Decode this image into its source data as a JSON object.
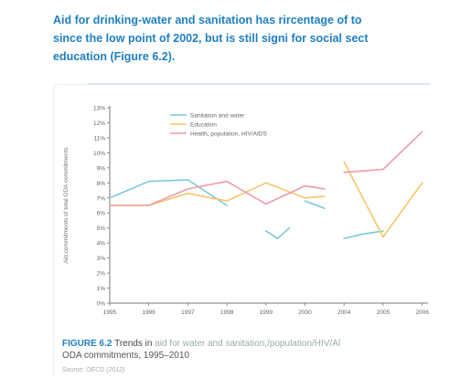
{
  "heading": {
    "line1": "Aid for drinking-water and sanitation has rircentage of to",
    "line2": "since the low point of 2002, but is still signi for social sect",
    "line3": "education (Figure 6.2)."
  },
  "figure": {
    "number": "FIGURE 6.2",
    "caption_dark": "Trends in",
    "caption_light": "aid for water and sanitation,/population/HIV/Al",
    "caption_line2": "ODA commitments, 1995–2010",
    "source": "Source: OECD (2012)"
  },
  "colors": {
    "sanitation": "#7ac9d4",
    "education": "#f6c56a",
    "health": "#ef9aa8",
    "axis": "#7a7a7a",
    "heading": "#1f7fc0"
  },
  "chart_data": {
    "type": "line",
    "ylabel": "Aid commitments of total ODA commitments",
    "categories": [
      "1995",
      "1996",
      "1997",
      "1998",
      "1999",
      "2000",
      "2004",
      "2005",
      "2006"
    ],
    "y_ticks": [
      "0%",
      "1%",
      "2%",
      "3%",
      "4%",
      "5%",
      "6%",
      "7%",
      "8%",
      "9%",
      "10%",
      "11%",
      "12%",
      "13%"
    ],
    "ylim": [
      0,
      13
    ],
    "grid": false,
    "legend_position": "top-left",
    "series": [
      {
        "name": "Sanitation and water",
        "color_key": "sanitation",
        "segments": [
          [
            [
              0,
              7.0
            ],
            [
              1,
              8.1
            ],
            [
              2,
              8.2
            ],
            [
              3,
              6.5
            ]
          ],
          [
            [
              4,
              4.8
            ],
            [
              4.3,
              4.3
            ],
            [
              4.6,
              5.0
            ]
          ],
          [
            [
              5,
              6.8
            ],
            [
              5.5,
              6.3
            ]
          ],
          [
            [
              6,
              4.3
            ],
            [
              6.5,
              4.6
            ],
            [
              7,
              4.8
            ]
          ]
        ]
      },
      {
        "name": "Education",
        "color_key": "education",
        "segments": [
          [
            [
              0,
              6.5
            ],
            [
              1,
              6.5
            ],
            [
              2,
              7.3
            ],
            [
              3,
              6.8
            ],
            [
              4,
              8.0
            ],
            [
              5,
              7.0
            ],
            [
              5.5,
              7.1
            ]
          ],
          [
            [
              6,
              9.4
            ],
            [
              7,
              4.4
            ],
            [
              8,
              8.0
            ]
          ]
        ]
      },
      {
        "name": "Health, population, HIV/AIDS",
        "color_key": "health",
        "segments": [
          [
            [
              0,
              6.5
            ],
            [
              1,
              6.5
            ],
            [
              2,
              7.6
            ],
            [
              3,
              8.1
            ],
            [
              4,
              6.6
            ],
            [
              5,
              7.8
            ],
            [
              5.5,
              7.6
            ]
          ],
          [
            [
              6,
              8.7
            ],
            [
              7,
              8.9
            ],
            [
              8,
              11.4
            ]
          ]
        ]
      }
    ]
  }
}
